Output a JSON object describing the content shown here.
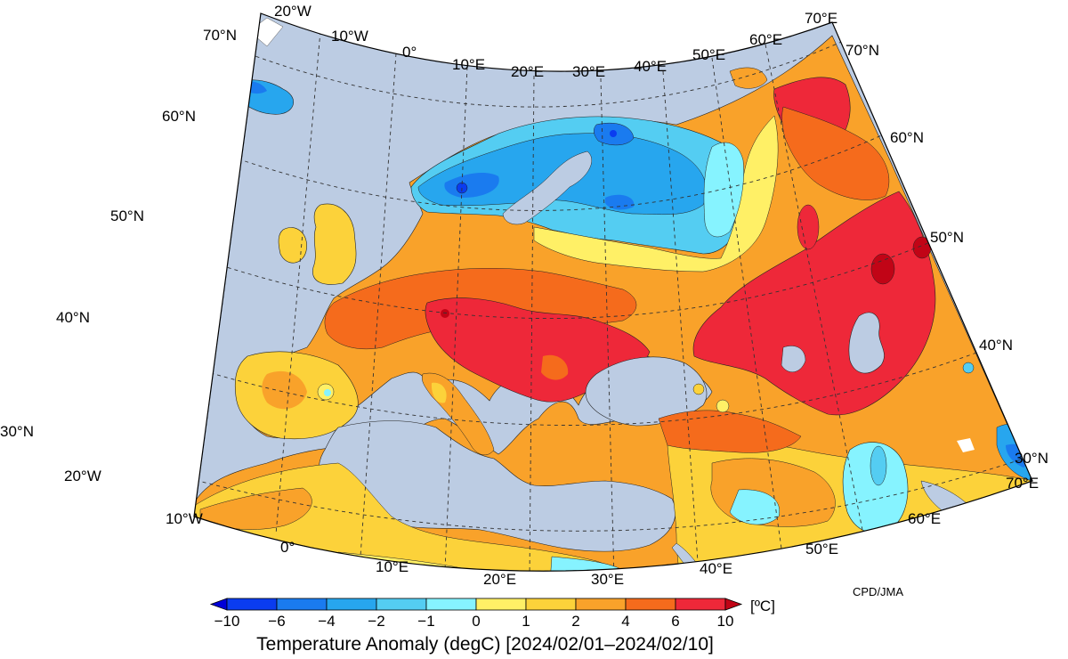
{
  "title": "Temperature Anomaly (degC) [2024/02/01–2024/02/10]",
  "unit": "[ºC]",
  "credit": "CPD/JMA",
  "colors": {
    "ocean": "#bccce3",
    "frame": "#000000"
  },
  "colorbar": {
    "levels": [
      "−10",
      "−6",
      "−4",
      "−2",
      "−1",
      "0",
      "1",
      "2",
      "4",
      "6",
      "10"
    ],
    "colors": [
      "#0000d8",
      "#0a3cf0",
      "#1a7bef",
      "#27a6ee",
      "#54cdf2",
      "#86f3ff",
      "#fff066",
      "#fcd23a",
      "#f9a22a",
      "#f56b1c",
      "#ee2839",
      "#c10416"
    ]
  },
  "graticule": {
    "lon_top": [
      "20°W",
      "10°W",
      "0°",
      "10°E",
      "20°E",
      "30°E",
      "40°E",
      "50°E",
      "60°E",
      "70°E"
    ],
    "lon_bottom": [
      "20°W",
      "10°W",
      "0°",
      "10°E",
      "20°E",
      "30°E",
      "40°E",
      "50°E",
      "60°E",
      "70°E"
    ],
    "lat_left": [
      "70°N",
      "60°N",
      "50°N",
      "40°N",
      "30°N"
    ],
    "lat_right": [
      "70°N",
      "60°N",
      "50°N",
      "40°N",
      "30°N"
    ]
  }
}
